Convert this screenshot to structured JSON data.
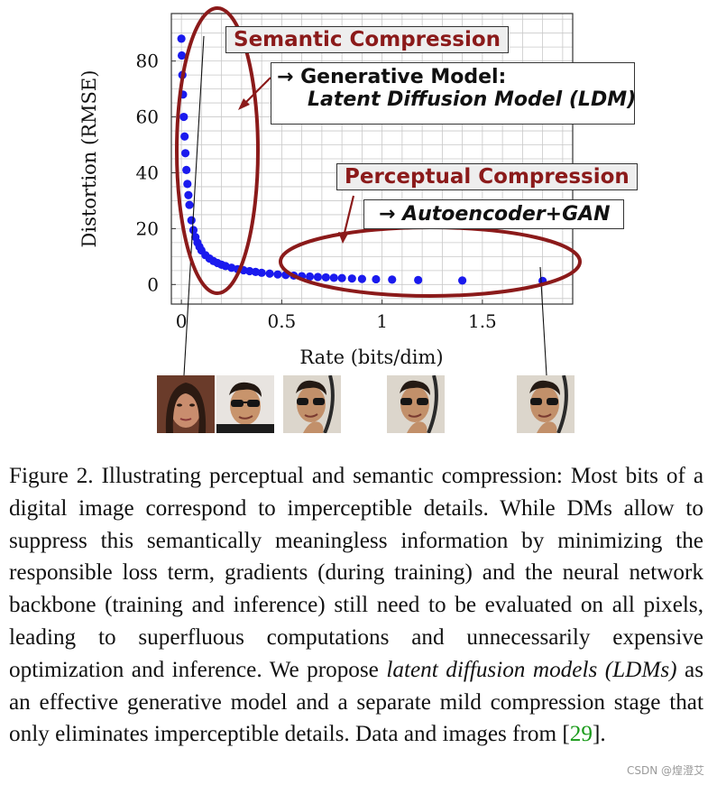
{
  "figure": {
    "chart_data": {
      "type": "scatter",
      "xlabel": "Rate (bits/dim)",
      "ylabel": "Distortion (RMSE)",
      "xlim": [
        -0.05,
        1.95
      ],
      "ylim": [
        -7,
        97
      ],
      "xticks": [
        0,
        0.5,
        1,
        1.5
      ],
      "xtick_labels": [
        "0",
        "0.5",
        "1",
        "1.5"
      ],
      "yticks": [
        0,
        20,
        40,
        60,
        80
      ],
      "ytick_labels": [
        "0",
        "20",
        "40",
        "60",
        "80"
      ],
      "grid": true,
      "point_color": "#1a1aee",
      "series": [
        {
          "x": [
            0.0,
            0.002,
            0.005,
            0.008,
            0.012,
            0.016,
            0.02,
            0.025,
            0.03,
            0.035,
            0.04,
            0.05,
            0.06,
            0.07,
            0.08,
            0.09,
            0.1,
            0.12,
            0.14,
            0.16,
            0.18,
            0.2,
            0.22,
            0.25,
            0.28,
            0.31,
            0.34,
            0.37,
            0.4,
            0.44,
            0.48,
            0.52,
            0.56,
            0.6,
            0.64,
            0.68,
            0.72,
            0.76,
            0.8,
            0.85,
            0.9,
            0.97,
            1.05,
            1.18,
            1.4,
            1.8
          ],
          "y": [
            88,
            82,
            75,
            68,
            60,
            53,
            47,
            41,
            36,
            32,
            28.5,
            23,
            19.5,
            17,
            15,
            13.5,
            12.2,
            10.5,
            9.3,
            8.4,
            7.7,
            7.1,
            6.6,
            6.0,
            5.5,
            5.1,
            4.8,
            4.5,
            4.2,
            3.9,
            3.6,
            3.4,
            3.2,
            3.0,
            2.85,
            2.7,
            2.55,
            2.4,
            2.3,
            2.15,
            2.0,
            1.9,
            1.75,
            1.6,
            1.45,
            1.3
          ]
        }
      ]
    },
    "annotations": {
      "semantic_label": "Semantic Compression",
      "generative_line1": "→ Generative Model:",
      "generative_line2": "Latent Diffusion Model (LDM)",
      "perceptual_label": "Perceptual Compression",
      "autoencoder_line": "→ Autoencoder+GAN"
    },
    "colors": {
      "ellipse": "#8b1a1a",
      "points": "#1a1aee",
      "label_red": "#8b1a1a"
    }
  },
  "caption": {
    "lead": "Figure 2. Illustrating perceptual and semantic compression: Most bits of a digital image correspond to imperceptible details. While DMs allow to suppress this semantically meaningless information by minimizing the responsible loss term, gradients (during training) and the neural network backbone (training and inference) still need to be evaluated on all pixels, leading to superfluous computations and unnecessarily expensive optimization and inference. We propose ",
    "emph": "latent diffusion models (LDMs)",
    "mid": " as an effective generative model and a separate mild compression stage that only eliminates imperceptible details. Data and images from [",
    "cite": "29",
    "tail": "]."
  },
  "watermark": "CSDN @煌澄艾"
}
